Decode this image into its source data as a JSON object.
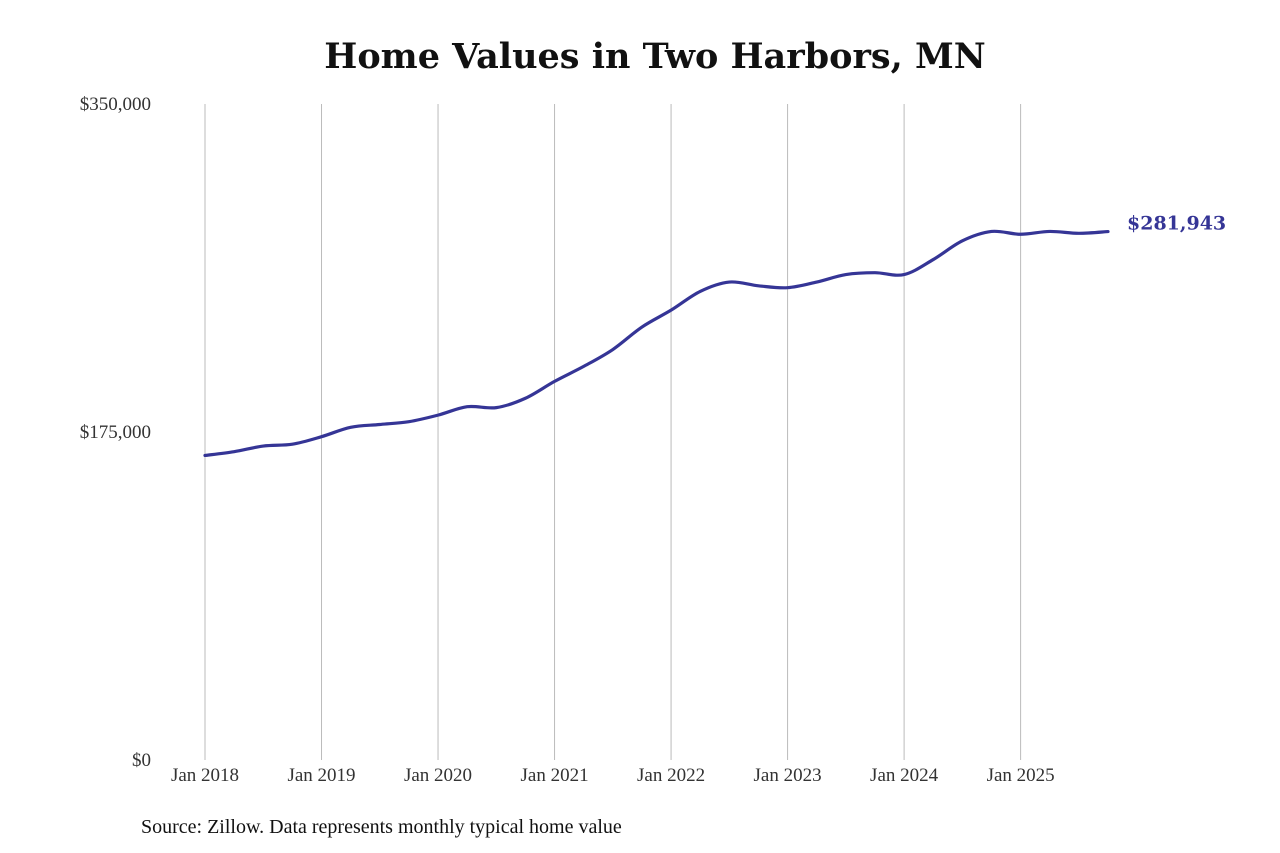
{
  "chart_data": {
    "type": "line",
    "title": "Home Values in Two Harbors, MN",
    "source": "Source: Zillow. Data represents monthly typical home value",
    "xlabel": "",
    "ylabel": "",
    "x_ticks": [
      "Jan 2018",
      "Jan 2019",
      "Jan 2020",
      "Jan 2021",
      "Jan 2022",
      "Jan 2023",
      "Jan 2024",
      "Jan 2025"
    ],
    "y_ticks": [
      0,
      175000,
      350000
    ],
    "y_tick_labels": [
      "$0",
      "$175,000",
      "$350,000"
    ],
    "ylim": [
      0,
      350000
    ],
    "grid": "vertical",
    "line_color": "#353596",
    "grid_color": "#bbbbbb",
    "end_label": "$281,943",
    "series": [
      {
        "points": [
          [
            "2018-01",
            162500
          ],
          [
            "2018-04",
            164500
          ],
          [
            "2018-07",
            167500
          ],
          [
            "2018-10",
            168500
          ],
          [
            "2019-01",
            172500
          ],
          [
            "2019-04",
            177500
          ],
          [
            "2019-07",
            179000
          ],
          [
            "2019-10",
            180500
          ],
          [
            "2020-01",
            184000
          ],
          [
            "2020-04",
            188500
          ],
          [
            "2020-07",
            188000
          ],
          [
            "2020-10",
            193000
          ],
          [
            "2021-01",
            202000
          ],
          [
            "2021-04",
            210000
          ],
          [
            "2021-07",
            219000
          ],
          [
            "2021-10",
            231000
          ],
          [
            "2022-01",
            240000
          ],
          [
            "2022-04",
            250000
          ],
          [
            "2022-07",
            255000
          ],
          [
            "2022-10",
            253000
          ],
          [
            "2023-01",
            252000
          ],
          [
            "2023-04",
            255000
          ],
          [
            "2023-07",
            259000
          ],
          [
            "2023-10",
            260000
          ],
          [
            "2024-01",
            259000
          ],
          [
            "2024-04",
            267000
          ],
          [
            "2024-07",
            277000
          ],
          [
            "2024-10",
            282000
          ],
          [
            "2025-01",
            280500
          ],
          [
            "2025-04",
            282000
          ],
          [
            "2025-07",
            281000
          ],
          [
            "2025-10",
            281943
          ]
        ]
      }
    ]
  }
}
